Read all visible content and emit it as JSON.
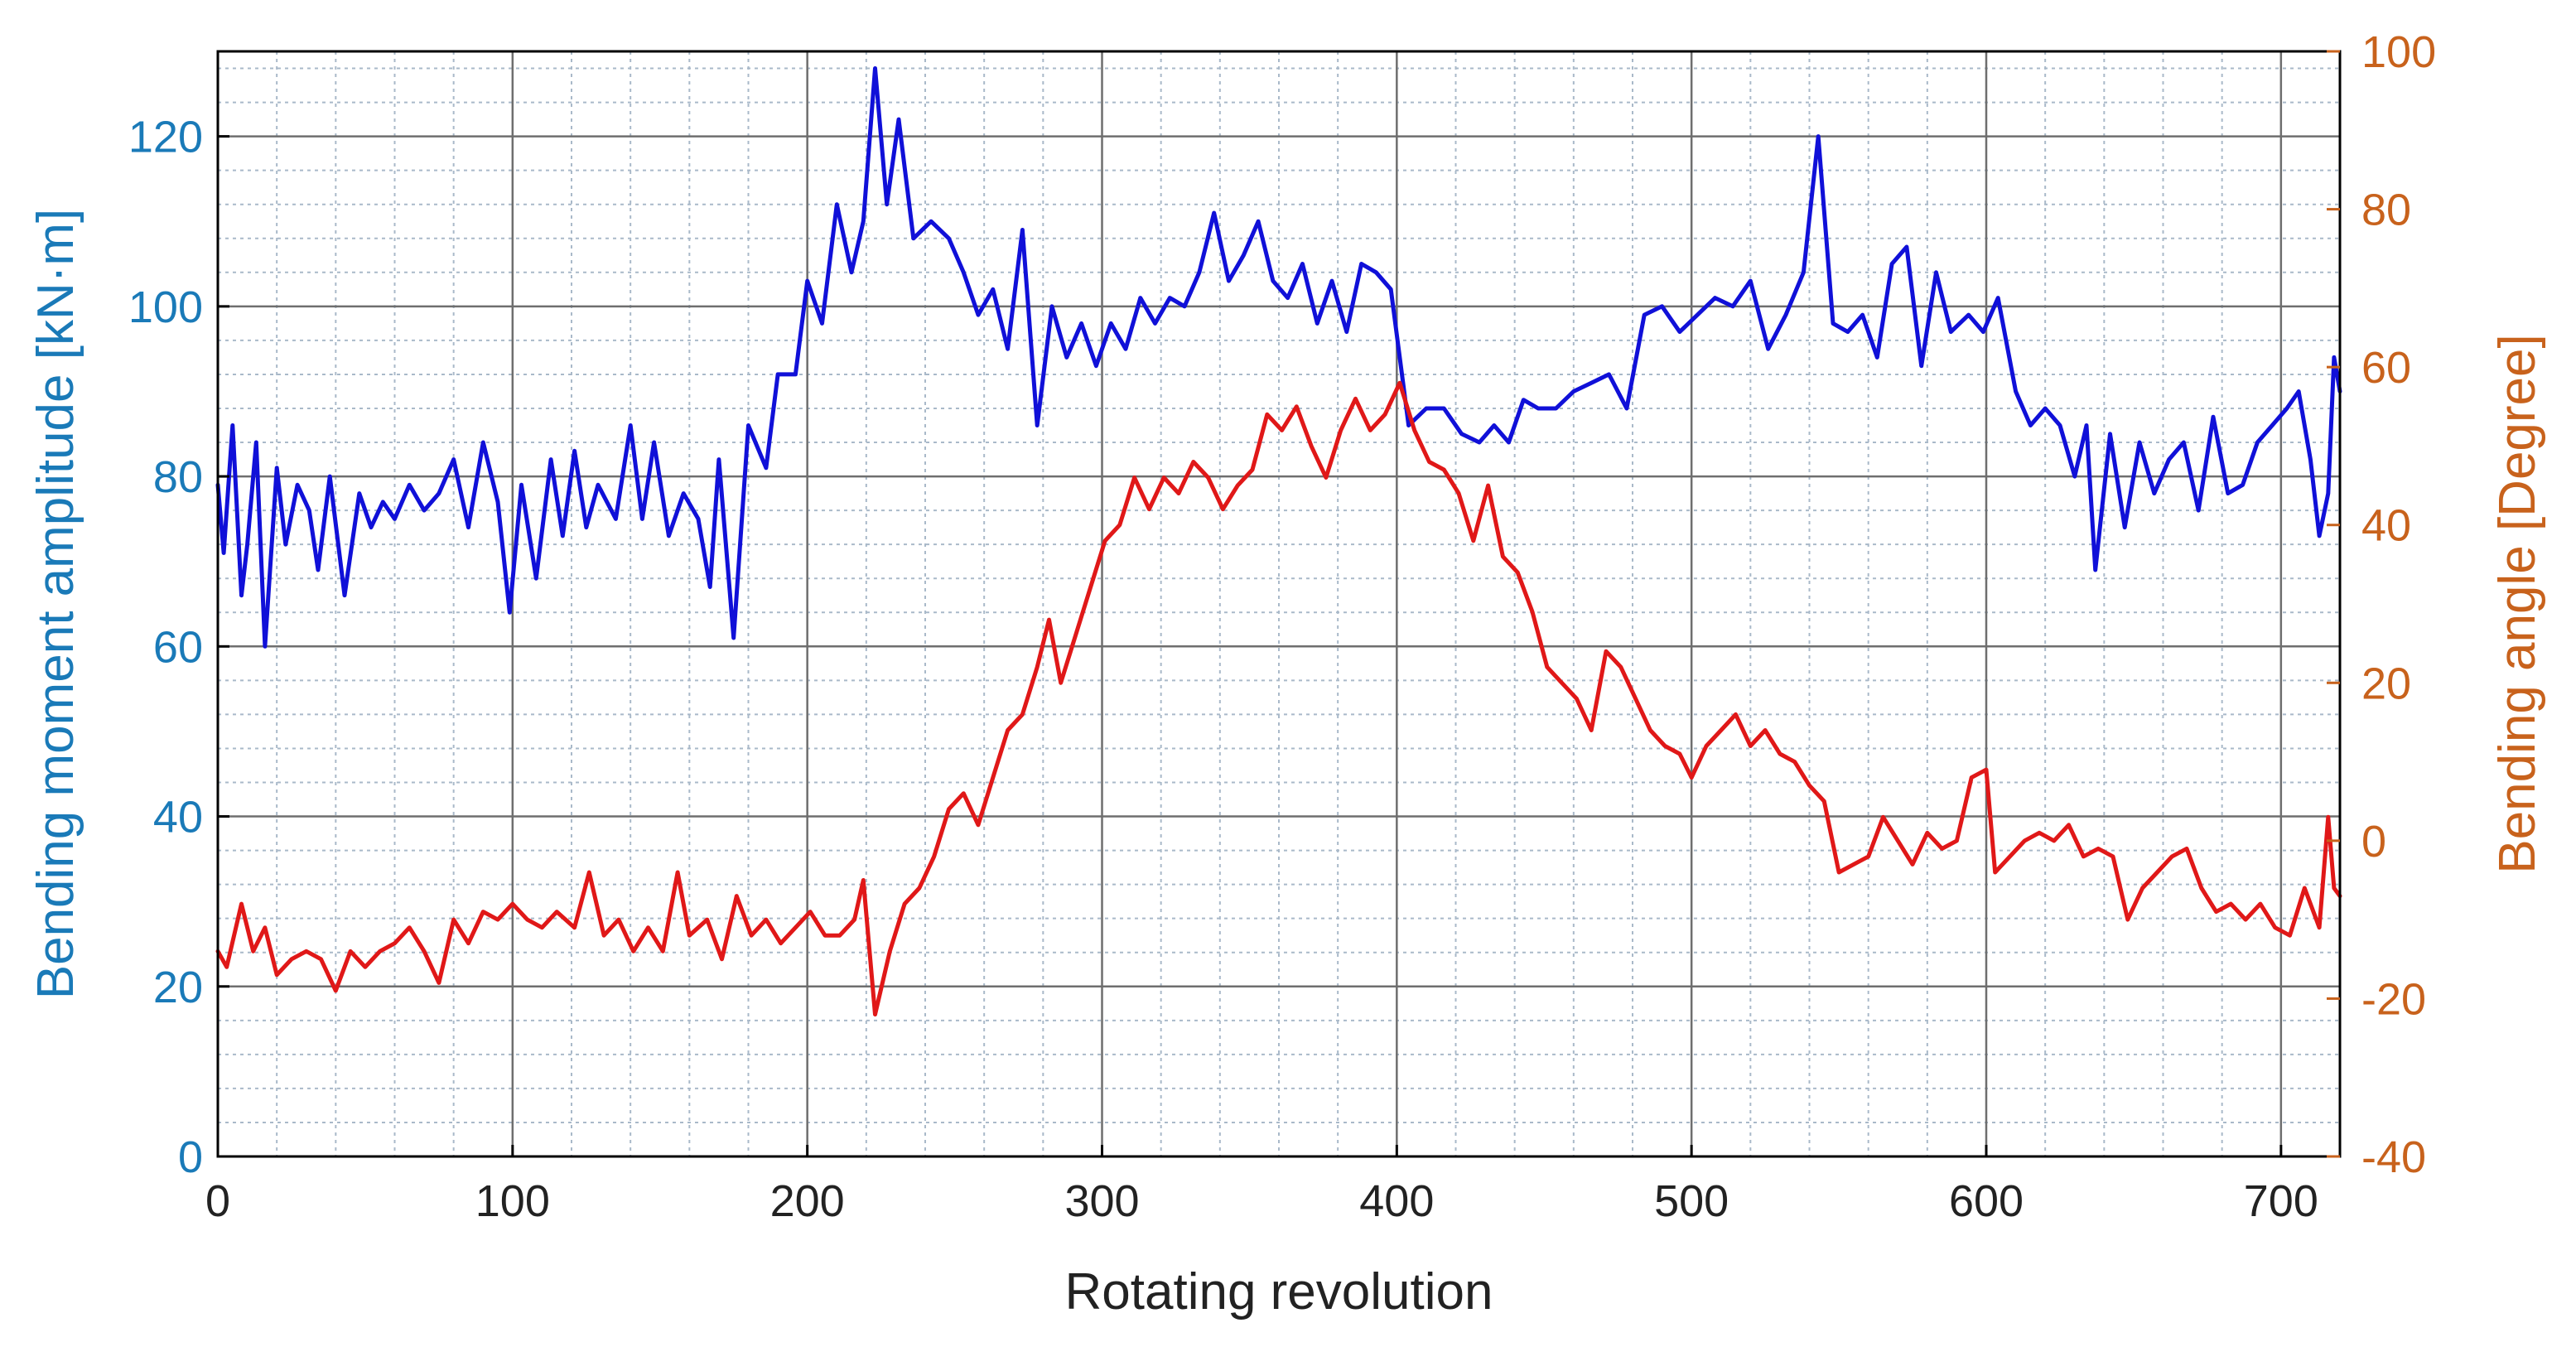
{
  "chart_data": {
    "type": "line",
    "title": "",
    "xlabel": "Rotating revolution",
    "ylabel_left": "Bending moment amplitude [kN·m]",
    "ylabel_right": "Bending angle [Degree]",
    "xlim": [
      0,
      720
    ],
    "ylim_left": [
      0,
      130
    ],
    "ylim_right": [
      -40,
      100
    ],
    "x_ticks": [
      0,
      100,
      200,
      300,
      400,
      500,
      600,
      700
    ],
    "y_ticks_left": [
      0,
      20,
      40,
      60,
      80,
      100,
      120
    ],
    "y_ticks_right": [
      -40,
      -20,
      0,
      20,
      40,
      60,
      80,
      100
    ],
    "grid": true,
    "colors": {
      "left_axis": "#1a7ab8",
      "right_axis": "#c8621c",
      "moment": "#1010d8",
      "angle": "#e01818",
      "grid_major": "#6e6e6e",
      "grid_minor": "#a9b9c9"
    },
    "series": [
      {
        "axis": "left",
        "color": "#1010d8",
        "points": [
          [
            0,
            79
          ],
          [
            2,
            71
          ],
          [
            5,
            86
          ],
          [
            8,
            66
          ],
          [
            10,
            72
          ],
          [
            13,
            84
          ],
          [
            16,
            60
          ],
          [
            20,
            81
          ],
          [
            23,
            72
          ],
          [
            27,
            79
          ],
          [
            31,
            76
          ],
          [
            34,
            69
          ],
          [
            38,
            80
          ],
          [
            43,
            66
          ],
          [
            48,
            78
          ],
          [
            52,
            74
          ],
          [
            56,
            77
          ],
          [
            60,
            75
          ],
          [
            65,
            79
          ],
          [
            70,
            76
          ],
          [
            75,
            78
          ],
          [
            80,
            82
          ],
          [
            85,
            74
          ],
          [
            90,
            84
          ],
          [
            95,
            77
          ],
          [
            99,
            64
          ],
          [
            103,
            79
          ],
          [
            108,
            68
          ],
          [
            113,
            82
          ],
          [
            117,
            73
          ],
          [
            121,
            83
          ],
          [
            125,
            74
          ],
          [
            129,
            79
          ],
          [
            135,
            75
          ],
          [
            140,
            86
          ],
          [
            144,
            75
          ],
          [
            148,
            84
          ],
          [
            153,
            73
          ],
          [
            158,
            78
          ],
          [
            163,
            75
          ],
          [
            167,
            67
          ],
          [
            170,
            82
          ],
          [
            175,
            61
          ],
          [
            180,
            86
          ],
          [
            186,
            81
          ],
          [
            190,
            92
          ],
          [
            196,
            92
          ],
          [
            200,
            103
          ],
          [
            205,
            98
          ],
          [
            210,
            112
          ],
          [
            215,
            104
          ],
          [
            219,
            110
          ],
          [
            223,
            128
          ],
          [
            227,
            112
          ],
          [
            231,
            122
          ],
          [
            236,
            108
          ],
          [
            242,
            110
          ],
          [
            248,
            108
          ],
          [
            253,
            104
          ],
          [
            258,
            99
          ],
          [
            263,
            102
          ],
          [
            268,
            95
          ],
          [
            273,
            109
          ],
          [
            278,
            86
          ],
          [
            283,
            100
          ],
          [
            288,
            94
          ],
          [
            293,
            98
          ],
          [
            298,
            93
          ],
          [
            303,
            98
          ],
          [
            308,
            95
          ],
          [
            313,
            101
          ],
          [
            318,
            98
          ],
          [
            323,
            101
          ],
          [
            328,
            100
          ],
          [
            333,
            104
          ],
          [
            338,
            111
          ],
          [
            343,
            103
          ],
          [
            348,
            106
          ],
          [
            353,
            110
          ],
          [
            358,
            103
          ],
          [
            363,
            101
          ],
          [
            368,
            105
          ],
          [
            373,
            98
          ],
          [
            378,
            103
          ],
          [
            383,
            97
          ],
          [
            388,
            105
          ],
          [
            393,
            104
          ],
          [
            398,
            102
          ],
          [
            404,
            86
          ],
          [
            410,
            88
          ],
          [
            416,
            88
          ],
          [
            422,
            85
          ],
          [
            428,
            84
          ],
          [
            433,
            86
          ],
          [
            438,
            84
          ],
          [
            443,
            89
          ],
          [
            448,
            88
          ],
          [
            454,
            88
          ],
          [
            460,
            90
          ],
          [
            466,
            91
          ],
          [
            472,
            92
          ],
          [
            478,
            88
          ],
          [
            484,
            99
          ],
          [
            490,
            100
          ],
          [
            496,
            97
          ],
          [
            502,
            99
          ],
          [
            508,
            101
          ],
          [
            514,
            100
          ],
          [
            520,
            103
          ],
          [
            526,
            95
          ],
          [
            532,
            99
          ],
          [
            538,
            104
          ],
          [
            543,
            120
          ],
          [
            548,
            98
          ],
          [
            553,
            97
          ],
          [
            558,
            99
          ],
          [
            563,
            94
          ],
          [
            568,
            105
          ],
          [
            573,
            107
          ],
          [
            578,
            93
          ],
          [
            583,
            104
          ],
          [
            588,
            97
          ],
          [
            594,
            99
          ],
          [
            599,
            97
          ],
          [
            604,
            101
          ],
          [
            610,
            90
          ],
          [
            615,
            86
          ],
          [
            620,
            88
          ],
          [
            625,
            86
          ],
          [
            630,
            80
          ],
          [
            634,
            86
          ],
          [
            637,
            69
          ],
          [
            642,
            85
          ],
          [
            647,
            74
          ],
          [
            652,
            84
          ],
          [
            657,
            78
          ],
          [
            662,
            82
          ],
          [
            667,
            84
          ],
          [
            672,
            76
          ],
          [
            677,
            87
          ],
          [
            682,
            78
          ],
          [
            687,
            79
          ],
          [
            692,
            84
          ],
          [
            697,
            86
          ],
          [
            702,
            88
          ],
          [
            706,
            90
          ],
          [
            710,
            82
          ],
          [
            713,
            73
          ],
          [
            716,
            78
          ],
          [
            718,
            94
          ],
          [
            720,
            90
          ]
        ]
      },
      {
        "axis": "right",
        "color": "#e01818",
        "points": [
          [
            0,
            -14
          ],
          [
            3,
            -16
          ],
          [
            8,
            -8
          ],
          [
            12,
            -14
          ],
          [
            16,
            -11
          ],
          [
            20,
            -17
          ],
          [
            25,
            -15
          ],
          [
            30,
            -14
          ],
          [
            35,
            -15
          ],
          [
            40,
            -19
          ],
          [
            45,
            -14
          ],
          [
            50,
            -16
          ],
          [
            55,
            -14
          ],
          [
            60,
            -13
          ],
          [
            65,
            -11
          ],
          [
            70,
            -14
          ],
          [
            75,
            -18
          ],
          [
            80,
            -10
          ],
          [
            85,
            -13
          ],
          [
            90,
            -9
          ],
          [
            95,
            -10
          ],
          [
            100,
            -8
          ],
          [
            105,
            -10
          ],
          [
            110,
            -11
          ],
          [
            115,
            -9
          ],
          [
            121,
            -11
          ],
          [
            126,
            -4
          ],
          [
            131,
            -12
          ],
          [
            136,
            -10
          ],
          [
            141,
            -14
          ],
          [
            146,
            -11
          ],
          [
            151,
            -14
          ],
          [
            156,
            -4
          ],
          [
            160,
            -12
          ],
          [
            166,
            -10
          ],
          [
            171,
            -15
          ],
          [
            176,
            -7
          ],
          [
            181,
            -12
          ],
          [
            186,
            -10
          ],
          [
            191,
            -13
          ],
          [
            196,
            -11
          ],
          [
            201,
            -9
          ],
          [
            206,
            -12
          ],
          [
            211,
            -12
          ],
          [
            216,
            -10
          ],
          [
            219,
            -5
          ],
          [
            223,
            -22
          ],
          [
            228,
            -14
          ],
          [
            233,
            -8
          ],
          [
            238,
            -6
          ],
          [
            243,
            -2
          ],
          [
            248,
            4
          ],
          [
            253,
            6
          ],
          [
            258,
            2
          ],
          [
            263,
            8
          ],
          [
            268,
            14
          ],
          [
            273,
            16
          ],
          [
            278,
            22
          ],
          [
            282,
            28
          ],
          [
            286,
            20
          ],
          [
            291,
            26
          ],
          [
            296,
            32
          ],
          [
            301,
            38
          ],
          [
            306,
            40
          ],
          [
            311,
            46
          ],
          [
            316,
            42
          ],
          [
            321,
            46
          ],
          [
            326,
            44
          ],
          [
            331,
            48
          ],
          [
            336,
            46
          ],
          [
            341,
            42
          ],
          [
            346,
            45
          ],
          [
            351,
            47
          ],
          [
            356,
            54
          ],
          [
            361,
            52
          ],
          [
            366,
            55
          ],
          [
            371,
            50
          ],
          [
            376,
            46
          ],
          [
            381,
            52
          ],
          [
            386,
            56
          ],
          [
            391,
            52
          ],
          [
            396,
            54
          ],
          [
            401,
            58
          ],
          [
            406,
            52
          ],
          [
            411,
            48
          ],
          [
            416,
            47
          ],
          [
            421,
            44
          ],
          [
            426,
            38
          ],
          [
            431,
            45
          ],
          [
            436,
            36
          ],
          [
            441,
            34
          ],
          [
            446,
            29
          ],
          [
            451,
            22
          ],
          [
            456,
            20
          ],
          [
            461,
            18
          ],
          [
            466,
            14
          ],
          [
            471,
            24
          ],
          [
            476,
            22
          ],
          [
            481,
            18
          ],
          [
            486,
            14
          ],
          [
            491,
            12
          ],
          [
            496,
            11
          ],
          [
            500,
            8
          ],
          [
            505,
            12
          ],
          [
            510,
            14
          ],
          [
            515,
            16
          ],
          [
            520,
            12
          ],
          [
            525,
            14
          ],
          [
            530,
            11
          ],
          [
            535,
            10
          ],
          [
            540,
            7
          ],
          [
            545,
            5
          ],
          [
            550,
            -4
          ],
          [
            555,
            -3
          ],
          [
            560,
            -2
          ],
          [
            565,
            3
          ],
          [
            570,
            0
          ],
          [
            575,
            -3
          ],
          [
            580,
            1
          ],
          [
            585,
            -1
          ],
          [
            590,
            0
          ],
          [
            595,
            8
          ],
          [
            600,
            9
          ],
          [
            603,
            -4
          ],
          [
            608,
            -2
          ],
          [
            613,
            0
          ],
          [
            618,
            1
          ],
          [
            623,
            0
          ],
          [
            628,
            2
          ],
          [
            633,
            -2
          ],
          [
            638,
            -1
          ],
          [
            643,
            -2
          ],
          [
            648,
            -10
          ],
          [
            653,
            -6
          ],
          [
            658,
            -4
          ],
          [
            663,
            -2
          ],
          [
            668,
            -1
          ],
          [
            673,
            -6
          ],
          [
            678,
            -9
          ],
          [
            683,
            -8
          ],
          [
            688,
            -10
          ],
          [
            693,
            -8
          ],
          [
            698,
            -11
          ],
          [
            703,
            -12
          ],
          [
            708,
            -6
          ],
          [
            713,
            -11
          ],
          [
            716,
            3
          ],
          [
            718,
            -6
          ],
          [
            720,
            -7
          ]
        ]
      }
    ]
  }
}
